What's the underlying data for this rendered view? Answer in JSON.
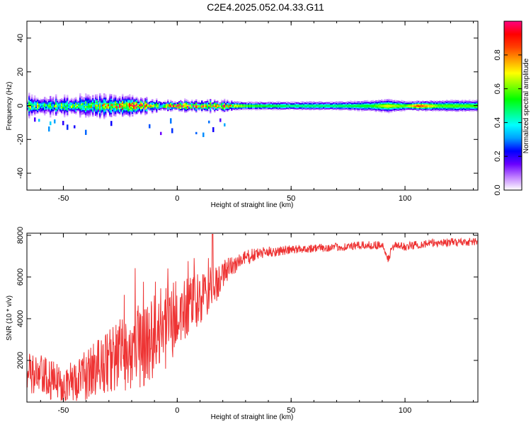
{
  "title": "C2E4.2025.052.04.33.G11",
  "chart_data": [
    {
      "type": "heatmap",
      "title": "",
      "xlabel": "Height of straight line (km)",
      "ylabel": "Frequency (Hz)",
      "xlim": [
        -66,
        132
      ],
      "ylim": [
        -50,
        50
      ],
      "xticks": [
        -50,
        0,
        50,
        100
      ],
      "yticks": [
        -40,
        -20,
        0,
        20,
        40
      ],
      "colorbar": {
        "label": "Normalized spectral amplitude",
        "range": [
          0,
          1
        ],
        "ticks": [
          "0.0",
          "0.2",
          "0.4",
          "0.6",
          "0.8"
        ],
        "colors": [
          "#ffffff",
          "#c080ff",
          "#6a00ff",
          "#0000ff",
          "#00a0ff",
          "#00ffff",
          "#00ff80",
          "#00ff00",
          "#80ff00",
          "#ffff00",
          "#ffa000",
          "#ff4000",
          "#ff0000",
          "#ff0080"
        ]
      },
      "bands": [
        {
          "x": -62,
          "half_width_hz": 5.0,
          "peak": 0.55
        },
        {
          "x": -55,
          "half_width_hz": 4.5,
          "peak": 0.45
        },
        {
          "x": -45,
          "half_width_hz": 5.0,
          "peak": 0.55
        },
        {
          "x": -35,
          "half_width_hz": 5.5,
          "peak": 0.6
        },
        {
          "x": -25,
          "half_width_hz": 4.5,
          "peak": 0.7
        },
        {
          "x": -18,
          "half_width_hz": 4.0,
          "peak": 0.85
        },
        {
          "x": -10,
          "half_width_hz": 3.0,
          "peak": 0.6
        },
        {
          "x": 0,
          "half_width_hz": 2.5,
          "peak": 0.9
        },
        {
          "x": 10,
          "half_width_hz": 3.0,
          "peak": 0.75
        },
        {
          "x": 20,
          "half_width_hz": 2.5,
          "peak": 0.85
        },
        {
          "x": 30,
          "half_width_hz": 2.0,
          "peak": 0.6
        },
        {
          "x": 50,
          "half_width_hz": 2.2,
          "peak": 0.5
        },
        {
          "x": 70,
          "half_width_hz": 2.3,
          "peak": 0.5
        },
        {
          "x": 85,
          "half_width_hz": 2.8,
          "peak": 0.55
        },
        {
          "x": 92,
          "half_width_hz": 3.5,
          "peak": 0.7
        },
        {
          "x": 100,
          "half_width_hz": 2.5,
          "peak": 0.6
        },
        {
          "x": 106,
          "half_width_hz": 2.5,
          "peak": 0.9
        },
        {
          "x": 115,
          "half_width_hz": 3.0,
          "peak": 0.6
        },
        {
          "x": 132,
          "half_width_hz": 3.0,
          "peak": 0.6
        }
      ]
    },
    {
      "type": "line",
      "title": "",
      "xlabel": "Height of straight line (km)",
      "ylabel": "SNR (10 * v/v)",
      "xlim": [
        -66,
        132
      ],
      "ylim": [
        0,
        8100
      ],
      "xticks": [
        -50,
        0,
        50,
        100
      ],
      "yticks": [
        2000,
        4000,
        6000,
        8000
      ],
      "color": "#ee3333",
      "series": [
        {
          "x": [
            -66,
            -60,
            -55,
            -50,
            -45,
            -40,
            -35,
            -30,
            -25,
            -20,
            -15,
            -10,
            -5,
            0,
            5,
            10,
            15,
            20,
            25,
            30,
            35,
            40,
            45,
            50,
            55,
            60,
            65,
            70,
            75,
            80,
            85,
            90,
            92,
            95,
            100,
            105,
            110,
            115,
            120,
            125,
            132
          ],
          "center": [
            1300,
            1200,
            1000,
            900,
            1000,
            1300,
            1700,
            2000,
            2300,
            2500,
            2800,
            3200,
            3600,
            4100,
            4500,
            4900,
            5400,
            6100,
            6600,
            6900,
            7100,
            7200,
            7250,
            7300,
            7350,
            7380,
            7400,
            7430,
            7460,
            7500,
            7520,
            7550,
            6800,
            7500,
            7450,
            7550,
            7600,
            7650,
            7660,
            7680,
            7700
          ],
          "spread": [
            1100,
            1100,
            1000,
            900,
            1000,
            1200,
            1400,
            1600,
            1800,
            2000,
            2100,
            2100,
            2000,
            1800,
            1500,
            1300,
            1100,
            700,
            500,
            400,
            300,
            260,
            240,
            220,
            200,
            200,
            200,
            200,
            200,
            200,
            200,
            200,
            300,
            200,
            200,
            200,
            200,
            200,
            200,
            200,
            200
          ]
        }
      ]
    }
  ]
}
